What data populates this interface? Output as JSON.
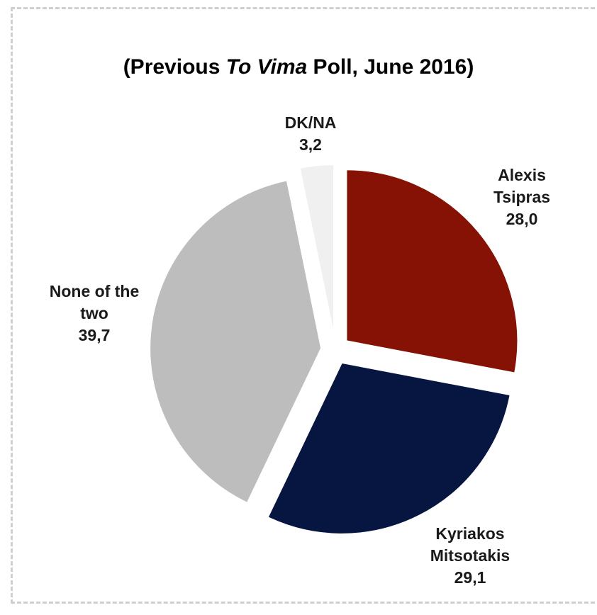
{
  "chart_data": {
    "type": "pie",
    "title": {
      "prefix": "(Previous ",
      "italic": "To Vima",
      "suffix": " Poll, June 2016)"
    },
    "slices": [
      {
        "name": "Alexis Tsipras",
        "label_lines": [
          "Alexis",
          "Tsipras"
        ],
        "value": 28.0,
        "value_label": "28,0",
        "color": "#851204"
      },
      {
        "name": "Kyriakos Mitsotakis",
        "label_lines": [
          "Kyriakos",
          "Mitsotakis"
        ],
        "value": 29.1,
        "value_label": "29,1",
        "color": "#061640"
      },
      {
        "name": "None of the two",
        "label_lines": [
          "None of the",
          "two"
        ],
        "value": 39.7,
        "value_label": "39,7",
        "color": "#bdbdbd"
      },
      {
        "name": "DK/NA",
        "label_lines": [
          "DK/NA"
        ],
        "value": 3.2,
        "value_label": "3,2",
        "color": "#f0f0f0"
      }
    ]
  }
}
